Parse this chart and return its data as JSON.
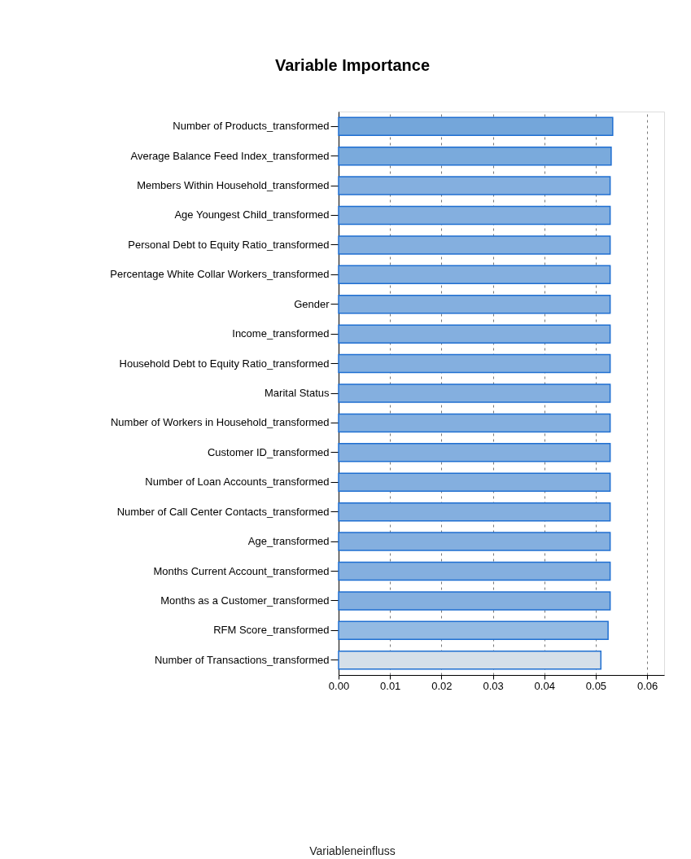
{
  "chart_data": {
    "type": "bar",
    "orientation": "horizontal",
    "title": "Variable Importance",
    "categories": [
      "Number of Products_transformed",
      "Average Balance Feed Index_transformed",
      "Members Within Household_transformed",
      "Age Youngest Child_transformed",
      "Personal Debt to Equity Ratio_transformed",
      "Percentage White Collar Workers_transformed",
      "Gender",
      "Income_transformed",
      "Household Debt to Equity Ratio_transformed",
      "Marital Status",
      "Number of Workers in Household_transformed",
      "Customer ID_transformed",
      "Number of Loan Accounts_transformed",
      "Number of Call Center Contacts_transformed",
      "Age_transformed",
      "Months Current Account_transformed",
      "Months as a Customer_transformed",
      "RFM Score_transformed",
      "Number of Transactions_transformed"
    ],
    "values": [
      0.0533,
      0.053,
      0.0528,
      0.0528,
      0.0528,
      0.0528,
      0.0528,
      0.0528,
      0.0528,
      0.0528,
      0.0528,
      0.0528,
      0.0528,
      0.0528,
      0.0528,
      0.0528,
      0.0528,
      0.0524,
      0.051
    ],
    "colors": [
      "#74a6da",
      "#7aaadc",
      "#84afdf",
      "#84afdf",
      "#84afdf",
      "#84afdf",
      "#84afdf",
      "#84afdf",
      "#84afdf",
      "#84afdf",
      "#84afdf",
      "#84afdf",
      "#84afdf",
      "#84afdf",
      "#84afdf",
      "#84afdf",
      "#84afdf",
      "#93bae3",
      "#d5dfe9"
    ],
    "xlim": [
      0,
      0.0633
    ],
    "xticks": [
      {
        "value": 0,
        "label": "0.00"
      },
      0.01,
      0.02,
      0.03,
      0.04,
      0.05,
      0.06
    ],
    "grid": "x",
    "annotations": [
      "Variableneinfluss"
    ]
  }
}
